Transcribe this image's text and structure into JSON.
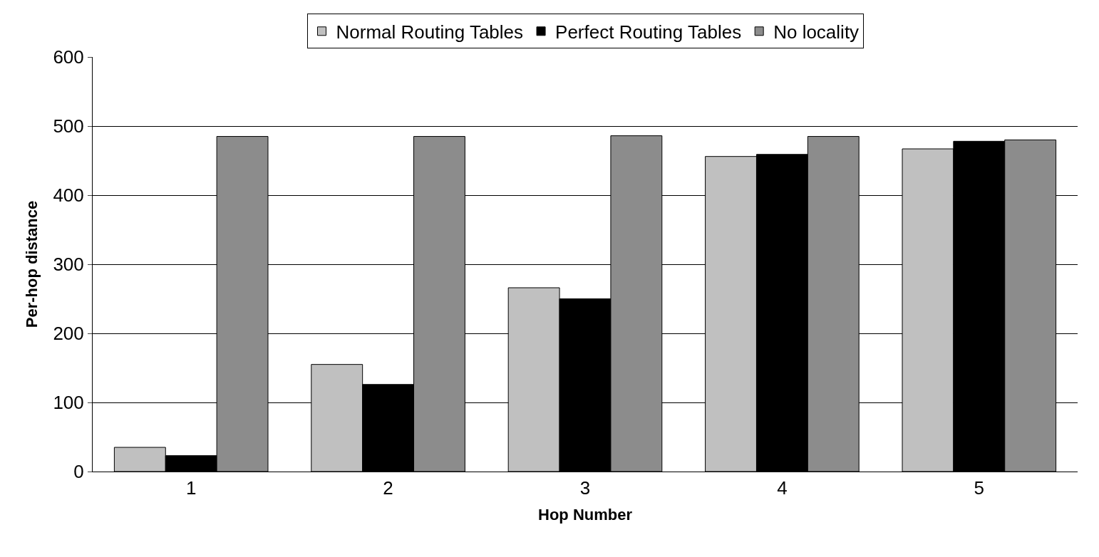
{
  "chart_data": {
    "type": "bar",
    "xlabel": "Hop Number",
    "ylabel": "Per-hop distance",
    "categories": [
      "1",
      "2",
      "3",
      "4",
      "5"
    ],
    "series": [
      {
        "name": "Normal Routing Tables",
        "color": "#c0c0c0",
        "values": [
          35,
          155,
          266,
          456,
          467
        ]
      },
      {
        "name": "Perfect Routing Tables",
        "color": "#000000",
        "values": [
          23,
          126,
          250,
          459,
          478
        ]
      },
      {
        "name": "No locality",
        "color": "#8c8c8c",
        "values": [
          485,
          485,
          486,
          485,
          480
        ]
      }
    ],
    "ylim": [
      0,
      600
    ],
    "yticks": [
      0,
      100,
      200,
      300,
      400,
      500,
      600
    ],
    "grid": "y",
    "legend": "top"
  }
}
